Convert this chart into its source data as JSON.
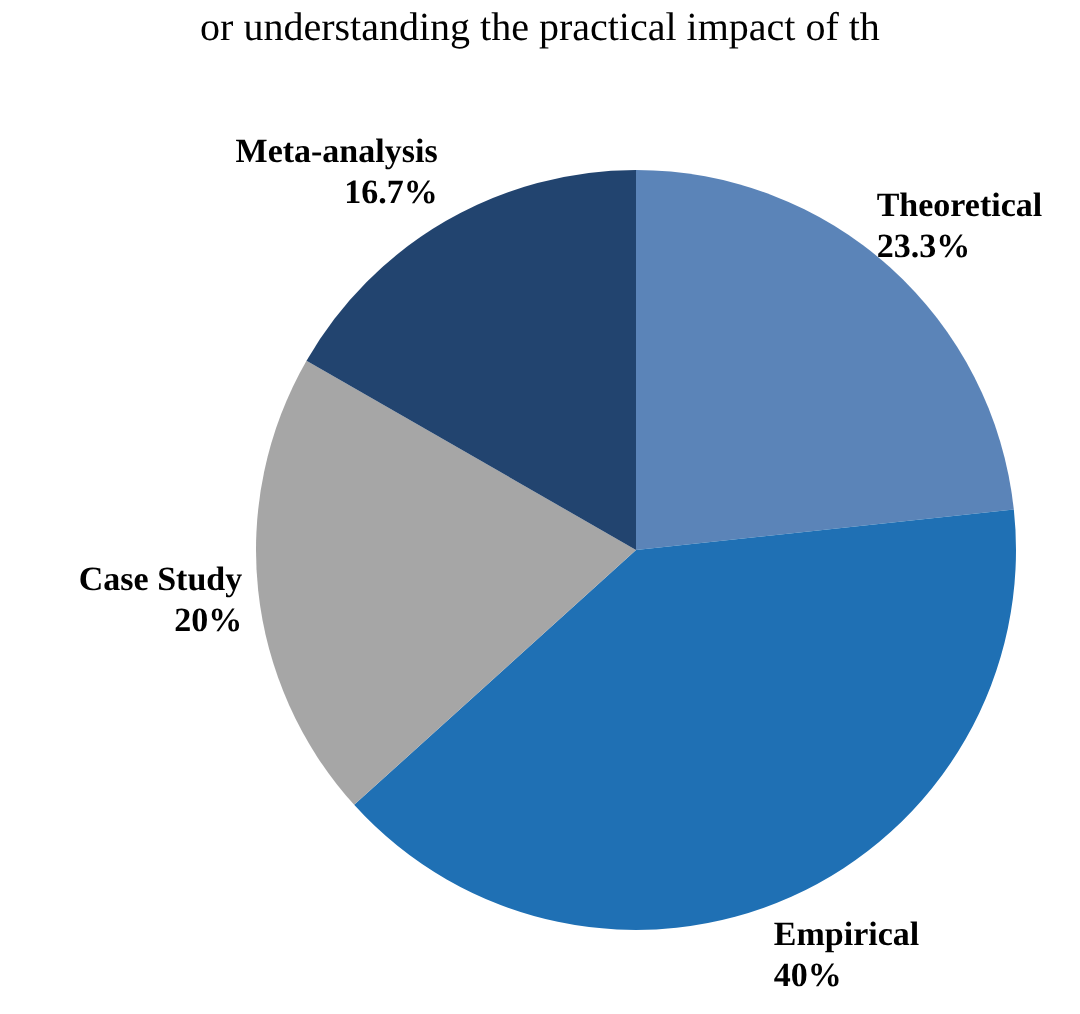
{
  "chart_data": {
    "type": "pie",
    "categories": [
      "Theoretical",
      "Empirical",
      "Case Study",
      "Meta-analysis"
    ],
    "values": [
      23.3,
      40,
      20,
      16.7
    ],
    "colors": [
      "#5b84b8",
      "#1f70b4",
      "#a6a6a6",
      "#22446f"
    ],
    "value_labels": [
      "23.3%",
      "40%",
      "20%",
      "16.7%"
    ],
    "annotations": [
      "or understanding the practical impact of th"
    ]
  }
}
